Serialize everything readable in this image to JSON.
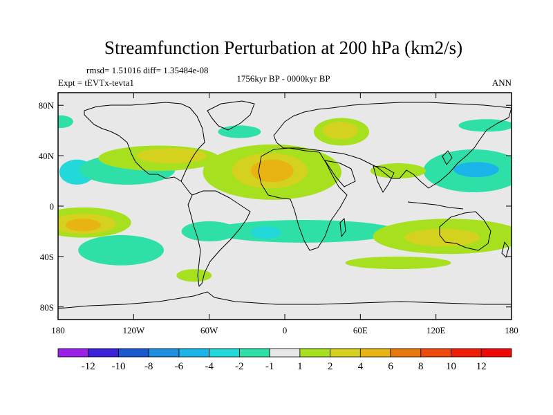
{
  "chart_data": {
    "type": "heatmap",
    "title": "Streamfunction Perturbation at 200 hPa (km2/s)",
    "stats_line": "rmsd= 1.51016 diff= 1.35484e-08",
    "experiment": "Expt = tEVTx-tevta1",
    "period": "1756kyr BP - 0000kyr BP",
    "season": "ANN",
    "x_ticks": [
      "180",
      "120W",
      "60W",
      "0",
      "60E",
      "120E",
      "180"
    ],
    "x_tick_values": [
      -180,
      -120,
      -60,
      0,
      60,
      120,
      180
    ],
    "y_ticks": [
      "80N",
      "40N",
      "0",
      "40S",
      "80S"
    ],
    "y_tick_values": [
      80,
      40,
      0,
      -40,
      -80
    ],
    "xlim": [
      -180,
      180
    ],
    "ylim": [
      -90,
      90
    ],
    "colorbar": {
      "labels": [
        "-12",
        "-10",
        "-8",
        "-6",
        "-4",
        "-2",
        "-1",
        "1",
        "2",
        "4",
        "6",
        "8",
        "10",
        "12"
      ],
      "colors": [
        "#9b20e8",
        "#3b22d9",
        "#1a58d0",
        "#1e90e0",
        "#1ab4e8",
        "#22d8d8",
        "#2ee0a8",
        "#e8e8e8",
        "#a6e01e",
        "#d4d21e",
        "#e8b414",
        "#e8780e",
        "#ee4a0c",
        "#f01e08",
        "#f00808"
      ]
    },
    "contour_regions": [
      {
        "level": -2,
        "lon": -165,
        "lat": 27,
        "rlon": 14,
        "rlat": 10
      },
      {
        "level": -1,
        "lon": -125,
        "lat": 29,
        "rlon": 38,
        "rlat": 12
      },
      {
        "level": -1,
        "lon": 150,
        "lat": 28,
        "rlon": 40,
        "rlat": 17
      },
      {
        "level": -4,
        "lon": 152,
        "lat": 29,
        "rlon": 18,
        "rlat": 6
      },
      {
        "level": -1,
        "lon": 160,
        "lat": 64,
        "rlon": 22,
        "rlat": 5
      },
      {
        "level": -1,
        "lon": -36,
        "lat": 59,
        "rlon": 17,
        "rlat": 5
      },
      {
        "level": -1,
        "lon": -178,
        "lat": 67,
        "rlon": 10,
        "rlat": 5
      },
      {
        "level": -2,
        "lon": -130,
        "lat": -36,
        "rlon": 20,
        "rlat": 7
      },
      {
        "level": -1,
        "lon": -130,
        "lat": -35,
        "rlon": 34,
        "rlat": 12
      },
      {
        "level": -1,
        "lon": 15,
        "lat": -20,
        "rlon": 75,
        "rlat": 9
      },
      {
        "level": -2,
        "lon": -15,
        "lat": -21,
        "rlon": 12,
        "rlat": 5
      },
      {
        "level": -1,
        "lon": -60,
        "lat": -20,
        "rlon": 22,
        "rlat": 8
      },
      {
        "level": 1,
        "lon": -10,
        "lat": 27,
        "rlon": 55,
        "rlat": 22
      },
      {
        "level": 2,
        "lon": -12,
        "lat": 28,
        "rlon": 30,
        "rlat": 14
      },
      {
        "level": 4,
        "lon": -10,
        "lat": 28,
        "rlon": 17,
        "rlat": 9
      },
      {
        "level": 1,
        "lon": -100,
        "lat": 38,
        "rlon": 48,
        "rlat": 10
      },
      {
        "level": 2,
        "lon": -90,
        "lat": 40,
        "rlon": 28,
        "rlat": 6
      },
      {
        "level": 1,
        "lon": 45,
        "lat": 59,
        "rlon": 22,
        "rlat": 11
      },
      {
        "level": 2,
        "lon": 44,
        "lat": 60,
        "rlon": 14,
        "rlat": 7
      },
      {
        "level": 1,
        "lon": 90,
        "lat": 28,
        "rlon": 22,
        "rlat": 6
      },
      {
        "level": 1,
        "lon": -160,
        "lat": -13,
        "rlon": 38,
        "rlat": 12
      },
      {
        "level": 2,
        "lon": -160,
        "lat": -14,
        "rlon": 26,
        "rlat": 8
      },
      {
        "level": 4,
        "lon": -160,
        "lat": -15,
        "rlon": 14,
        "rlat": 5
      },
      {
        "level": 1,
        "lon": 130,
        "lat": -24,
        "rlon": 60,
        "rlat": 14
      },
      {
        "level": 2,
        "lon": 125,
        "lat": -25,
        "rlon": 30,
        "rlat": 7
      },
      {
        "level": 1,
        "lon": 90,
        "lat": -45,
        "rlon": 42,
        "rlat": 5
      },
      {
        "level": 1,
        "lon": -72,
        "lat": -55,
        "rlon": 14,
        "rlat": 5
      }
    ]
  }
}
